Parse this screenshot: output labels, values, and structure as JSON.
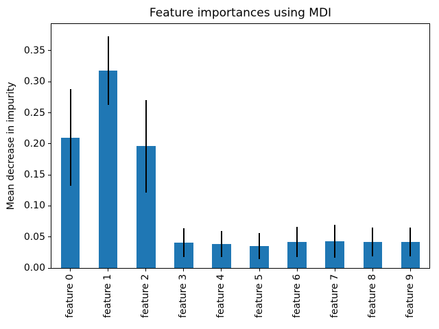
{
  "figure": {
    "background_color": "#ffffff",
    "text_color": "#000000"
  },
  "chart_data": {
    "type": "bar",
    "title": "Feature importances using MDI",
    "xlabel": "",
    "ylabel": "Mean decrease in impurity",
    "categories": [
      "feature 0",
      "feature 1",
      "feature 2",
      "feature 3",
      "feature 4",
      "feature 5",
      "feature 6",
      "feature 7",
      "feature 8",
      "feature 9"
    ],
    "series": [
      {
        "name": "Mean decrease in impurity",
        "values": [
          0.21,
          0.318,
          0.196,
          0.041,
          0.039,
          0.035,
          0.042,
          0.043,
          0.042,
          0.042
        ]
      }
    ],
    "error_bars": {
      "kind": "symmetric-std",
      "values": [
        0.078,
        0.055,
        0.075,
        0.023,
        0.021,
        0.021,
        0.024,
        0.027,
        0.023,
        0.023
      ]
    },
    "ytick_labels": [
      "0.00",
      "0.05",
      "0.10",
      "0.15",
      "0.20",
      "0.25",
      "0.30",
      "0.35"
    ],
    "ylim": [
      0,
      0.393
    ],
    "xtick_rotation_degrees": 90,
    "grid": false,
    "legend_position": "none",
    "bar_color": "#1f77b4",
    "error_bar_color": "#000000",
    "bar_relative_width": 0.5
  }
}
